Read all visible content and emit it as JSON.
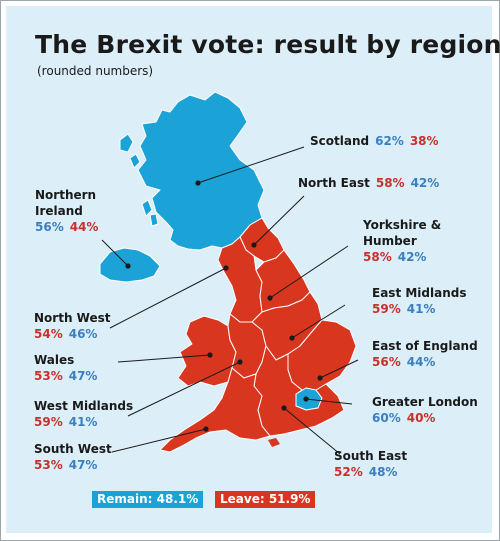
{
  "title": "The Brexit vote: result by regions",
  "subtitle": "(rounded numbers)",
  "colors": {
    "remain": "#1ba3d8",
    "leave": "#d9361f",
    "remain_text": "#3a7fc0",
    "leave_text": "#c8312b",
    "background": "#dceef7"
  },
  "legend": {
    "remain": "Remain: 48.1%",
    "leave": "Leave: 51.9%"
  },
  "regions": [
    {
      "key": "scotland",
      "name_lines": [
        "Scotland"
      ],
      "remain": "62%",
      "leave": "38%",
      "winner": "remain"
    },
    {
      "key": "northern-ireland",
      "name_lines": [
        "Northern",
        "Ireland"
      ],
      "remain": "56%",
      "leave": "44%",
      "winner": "remain"
    },
    {
      "key": "north-east",
      "name_lines": [
        "North East"
      ],
      "remain": "42%",
      "leave": "58%",
      "winner": "leave",
      "leave_first": true
    },
    {
      "key": "yorkshire-humber",
      "name_lines": [
        "Yorkshire &",
        "Humber"
      ],
      "remain": "42%",
      "leave": "58%",
      "winner": "leave",
      "leave_first": true
    },
    {
      "key": "north-west",
      "name_lines": [
        "North West"
      ],
      "remain": "46%",
      "leave": "54%",
      "winner": "leave",
      "leave_first": true
    },
    {
      "key": "east-midlands",
      "name_lines": [
        "East Midlands"
      ],
      "remain": "41%",
      "leave": "59%",
      "winner": "leave",
      "leave_first": true
    },
    {
      "key": "wales",
      "name_lines": [
        "Wales"
      ],
      "remain": "47%",
      "leave": "53%",
      "winner": "leave",
      "leave_first": true
    },
    {
      "key": "east-of-england",
      "name_lines": [
        "East of England"
      ],
      "remain": "44%",
      "leave": "56%",
      "winner": "leave",
      "leave_first": true
    },
    {
      "key": "west-midlands",
      "name_lines": [
        "West Midlands"
      ],
      "remain": "41%",
      "leave": "59%",
      "winner": "leave",
      "leave_first": true
    },
    {
      "key": "greater-london",
      "name_lines": [
        "Greater London"
      ],
      "remain": "60%",
      "leave": "40%",
      "winner": "remain"
    },
    {
      "key": "south-west",
      "name_lines": [
        "South West"
      ],
      "remain": "47%",
      "leave": "53%",
      "winner": "leave",
      "leave_first": true
    },
    {
      "key": "south-east",
      "name_lines": [
        "South East"
      ],
      "remain": "48%",
      "leave": "52%",
      "winner": "leave",
      "leave_first": true
    }
  ]
}
